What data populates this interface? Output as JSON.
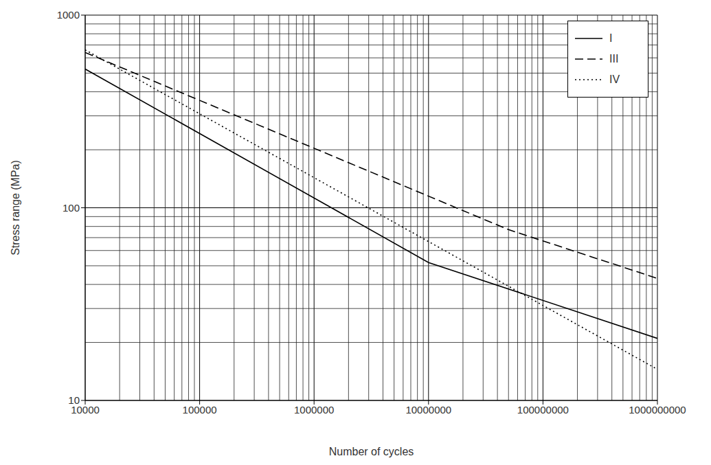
{
  "chart_data": {
    "type": "line",
    "log": true,
    "grid": true,
    "legend": "upper right",
    "x_label": "Number of cycles",
    "y_label": "Stress range (MPa)",
    "xlim": [
      10000,
      1000000000
    ],
    "ylim": [
      10,
      1000
    ],
    "xticks": [
      10000,
      100000,
      1000000,
      10000000,
      100000000,
      1000000000
    ],
    "yticks": [
      10,
      100,
      1000
    ],
    "series": [
      {
        "name": "I",
        "color": "#000000",
        "line_style": "solid",
        "x": [
          10000,
          10000000,
          1000000000
        ],
        "values": [
          525,
          52,
          21
        ]
      },
      {
        "name": "III",
        "color": "#000000",
        "line_style": "dashed",
        "x": [
          10000,
          50000000,
          1000000000
        ],
        "values": [
          640,
          77,
          43
        ]
      },
      {
        "name": "IV",
        "color": "#000000",
        "line_style": "dotted",
        "x": [
          10000,
          1000000000
        ],
        "values": [
          660,
          14.5
        ]
      }
    ]
  }
}
